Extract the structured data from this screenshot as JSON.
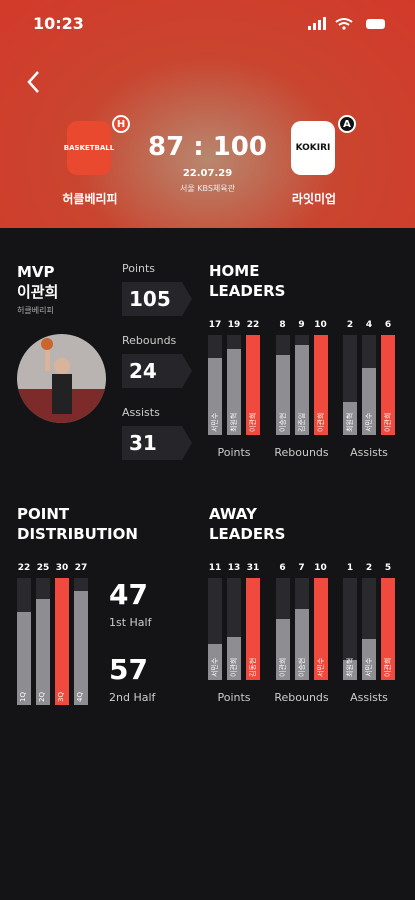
{
  "status_bar": {
    "time": "10:23"
  },
  "header": {
    "home": {
      "name": "허클베리피",
      "badge": "H",
      "logo_text": "BASKETBALL"
    },
    "away": {
      "name": "라잇미업",
      "badge": "A",
      "logo_text": "KOKIRI"
    },
    "score": "87 : 100",
    "date": "22.07.29",
    "venue": "서울 KBS체육관"
  },
  "mvp": {
    "title": "MVP",
    "name": "이관희",
    "team": "허클베리피",
    "stats": [
      {
        "label": "Points",
        "value": 105
      },
      {
        "label": "Rebounds",
        "value": 24
      },
      {
        "label": "Assists",
        "value": 31
      }
    ]
  },
  "home_leaders": {
    "title": "HOME LEADERS",
    "groups": [
      {
        "label": "Points",
        "values": [
          17,
          19,
          22
        ],
        "players": [
          "서민수",
          "최원혁",
          "이관희"
        ],
        "highlight": 2
      },
      {
        "label": "Rebounds",
        "values": [
          8,
          9,
          10
        ],
        "players": [
          "이승현",
          "김준일",
          "이관희"
        ],
        "highlight": 2
      },
      {
        "label": "Assists",
        "values": [
          2,
          4,
          6
        ],
        "players": [
          "최원혁",
          "서민수",
          "이관희"
        ],
        "highlight": 2
      }
    ]
  },
  "point_distribution": {
    "title": "POINT DISTRIBUTION",
    "values": [
      22,
      25,
      30,
      27
    ],
    "quarters": [
      "1Q",
      "2Q",
      "3Q",
      "4Q"
    ],
    "highlight": 2,
    "halves": [
      {
        "value": 47,
        "label": "1st Half"
      },
      {
        "value": 57,
        "label": "2nd Half"
      }
    ]
  },
  "away_leaders": {
    "title": "AWAY LEADERS",
    "groups": [
      {
        "label": "Points",
        "values": [
          11,
          13,
          31
        ],
        "players": [
          "서민수",
          "이관희",
          "김동현"
        ],
        "highlight": 2
      },
      {
        "label": "Rebounds",
        "values": [
          6,
          7,
          10
        ],
        "players": [
          "이관희",
          "이승현",
          "서민수"
        ],
        "highlight": 2
      },
      {
        "label": "Assists",
        "values": [
          1,
          2,
          5
        ],
        "players": [
          "최원혁",
          "서민수",
          "이관희"
        ],
        "highlight": 2
      }
    ]
  },
  "colors": {
    "track": "#2a2a2e",
    "bar": "#8e8e92",
    "highlight": "#f04a3e"
  }
}
